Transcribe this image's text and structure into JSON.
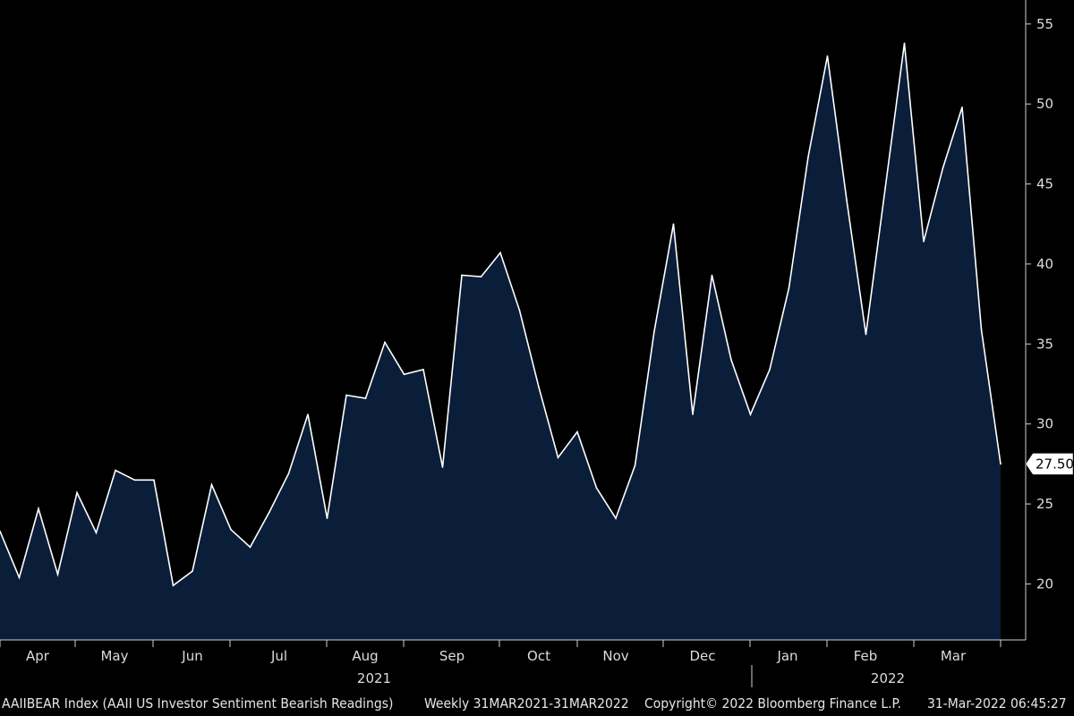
{
  "chart_data": {
    "type": "area",
    "ticker": "AAIIBEAR Index",
    "description": "(AAII US Investor Sentiment Bearish Readings)",
    "frequency_range": "Weekly 31MAR2021-31MAR2022",
    "y_ticks": [
      20,
      25,
      30,
      35,
      40,
      45,
      50,
      55
    ],
    "ylim": [
      16.5,
      56.5
    ],
    "x_month_labels": [
      "Apr",
      "May",
      "Jun",
      "Jul",
      "Aug",
      "Sep",
      "Oct",
      "Nov",
      "Dec",
      "Jan",
      "Feb",
      "Mar"
    ],
    "x_year_labels": [
      "2021",
      "2022"
    ],
    "last_value_label": "27.50",
    "series": [
      {
        "values": [
          23.3,
          20.4,
          24.7,
          20.6,
          25.7,
          23.2,
          27.1,
          26.5,
          26.5,
          19.9,
          20.8,
          26.2,
          23.4,
          22.3,
          24.5,
          26.9,
          30.6,
          24.1,
          31.8,
          31.6,
          35.1,
          33.1,
          33.4,
          27.3,
          39.3,
          39.2,
          40.7,
          37.1,
          32.3,
          27.9,
          29.5,
          26.0,
          24.1,
          27.4,
          35.8,
          42.5,
          30.6,
          39.3,
          34.0,
          30.6,
          33.4,
          38.5,
          46.7,
          53.0,
          44.0,
          35.6,
          44.7,
          53.8,
          41.4,
          46.0,
          49.8,
          35.9,
          27.5
        ]
      }
    ],
    "colors": {
      "fill": "#0a1e3a",
      "line": "#ffffff",
      "background": "#000000",
      "text": "#dcdcdc"
    }
  },
  "footer": {
    "ticker_desc": "AAIIBEAR Index (AAII US Investor Sentiment Bearish Readings)",
    "range": "Weekly 31MAR2021-31MAR2022",
    "copyright": "Copyright© 2022 Bloomberg Finance L.P.",
    "timestamp": "31-Mar-2022 06:45:27"
  }
}
